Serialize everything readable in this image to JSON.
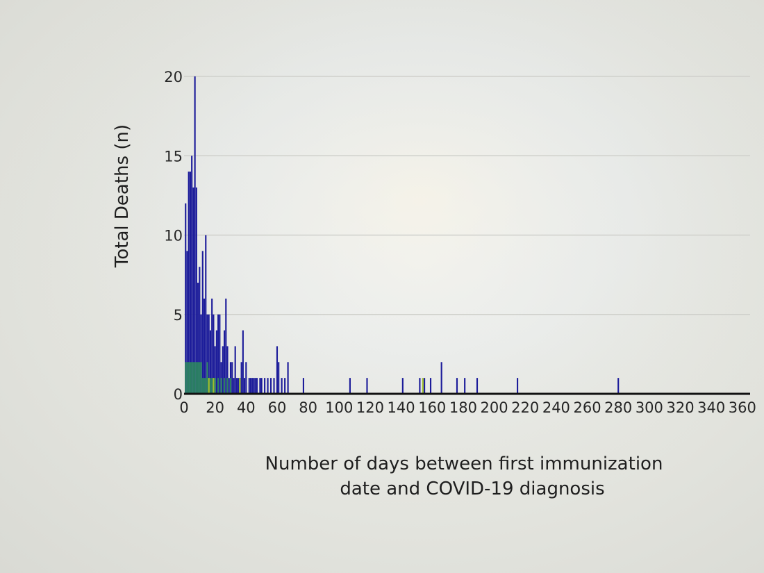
{
  "chart_data": {
    "type": "bar",
    "ylabel": "Total Deaths (n)",
    "xlabel_lines": [
      "Number of days between first immunization",
      "date and COVID-19 diagnosis"
    ],
    "xlim": [
      0,
      365
    ],
    "ylim": [
      0,
      20
    ],
    "x_ticks": [
      0,
      20,
      40,
      60,
      80,
      100,
      120,
      140,
      160,
      180,
      200,
      220,
      240,
      260,
      280,
      300,
      320,
      340,
      360
    ],
    "y_ticks": [
      0,
      5,
      10,
      15,
      20
    ],
    "grid": true,
    "series": [
      {
        "color": "#1c1c9a",
        "x": [
          1,
          2,
          3,
          4,
          5,
          6,
          7,
          8,
          9,
          10,
          11,
          12,
          13,
          14,
          15,
          16,
          17,
          18,
          19,
          20,
          21,
          22,
          23,
          24,
          25,
          26,
          27,
          28,
          29,
          30,
          31,
          32,
          33,
          34,
          35,
          36,
          37,
          38,
          39,
          40,
          42,
          43,
          44,
          45,
          46,
          47,
          49,
          50,
          52,
          54,
          56,
          58,
          60,
          61,
          63,
          65,
          67,
          77,
          107,
          118,
          141,
          152,
          155,
          159,
          166,
          176,
          181,
          189,
          215,
          280
        ],
        "values": [
          12,
          9,
          14,
          14,
          15,
          13,
          20,
          13,
          7,
          8,
          5,
          9,
          6,
          10,
          5,
          5,
          4,
          6,
          5,
          3,
          4,
          5,
          5,
          2,
          3,
          4,
          6,
          3,
          1,
          2,
          2,
          1,
          3,
          1,
          1,
          1,
          2,
          4,
          1,
          2,
          1,
          1,
          1,
          1,
          1,
          1,
          1,
          1,
          1,
          1,
          1,
          1,
          3,
          2,
          1,
          1,
          2,
          1,
          1,
          1,
          1,
          1,
          1,
          1,
          2,
          1,
          1,
          1,
          1,
          1
        ]
      },
      {
        "color": "#2a7f62",
        "x": [
          1,
          2,
          3,
          4,
          5,
          6,
          7,
          8,
          9,
          10,
          11,
          12,
          13,
          14,
          15,
          16,
          17,
          18,
          19,
          20,
          22,
          24,
          26,
          28,
          30
        ],
        "values": [
          2,
          2,
          2,
          2,
          2,
          2,
          2,
          2,
          2,
          2,
          2,
          1,
          1,
          1,
          2,
          1,
          1,
          1,
          1,
          1,
          1,
          1,
          1,
          1,
          1
        ]
      },
      {
        "color": "#9fbf2a",
        "x": [
          16,
          19,
          36,
          154
        ],
        "values": [
          1,
          1,
          1,
          1
        ]
      }
    ]
  },
  "colors": {
    "axis": "#111111",
    "grid": "#cfd0cb",
    "tick_text": "#262626"
  }
}
